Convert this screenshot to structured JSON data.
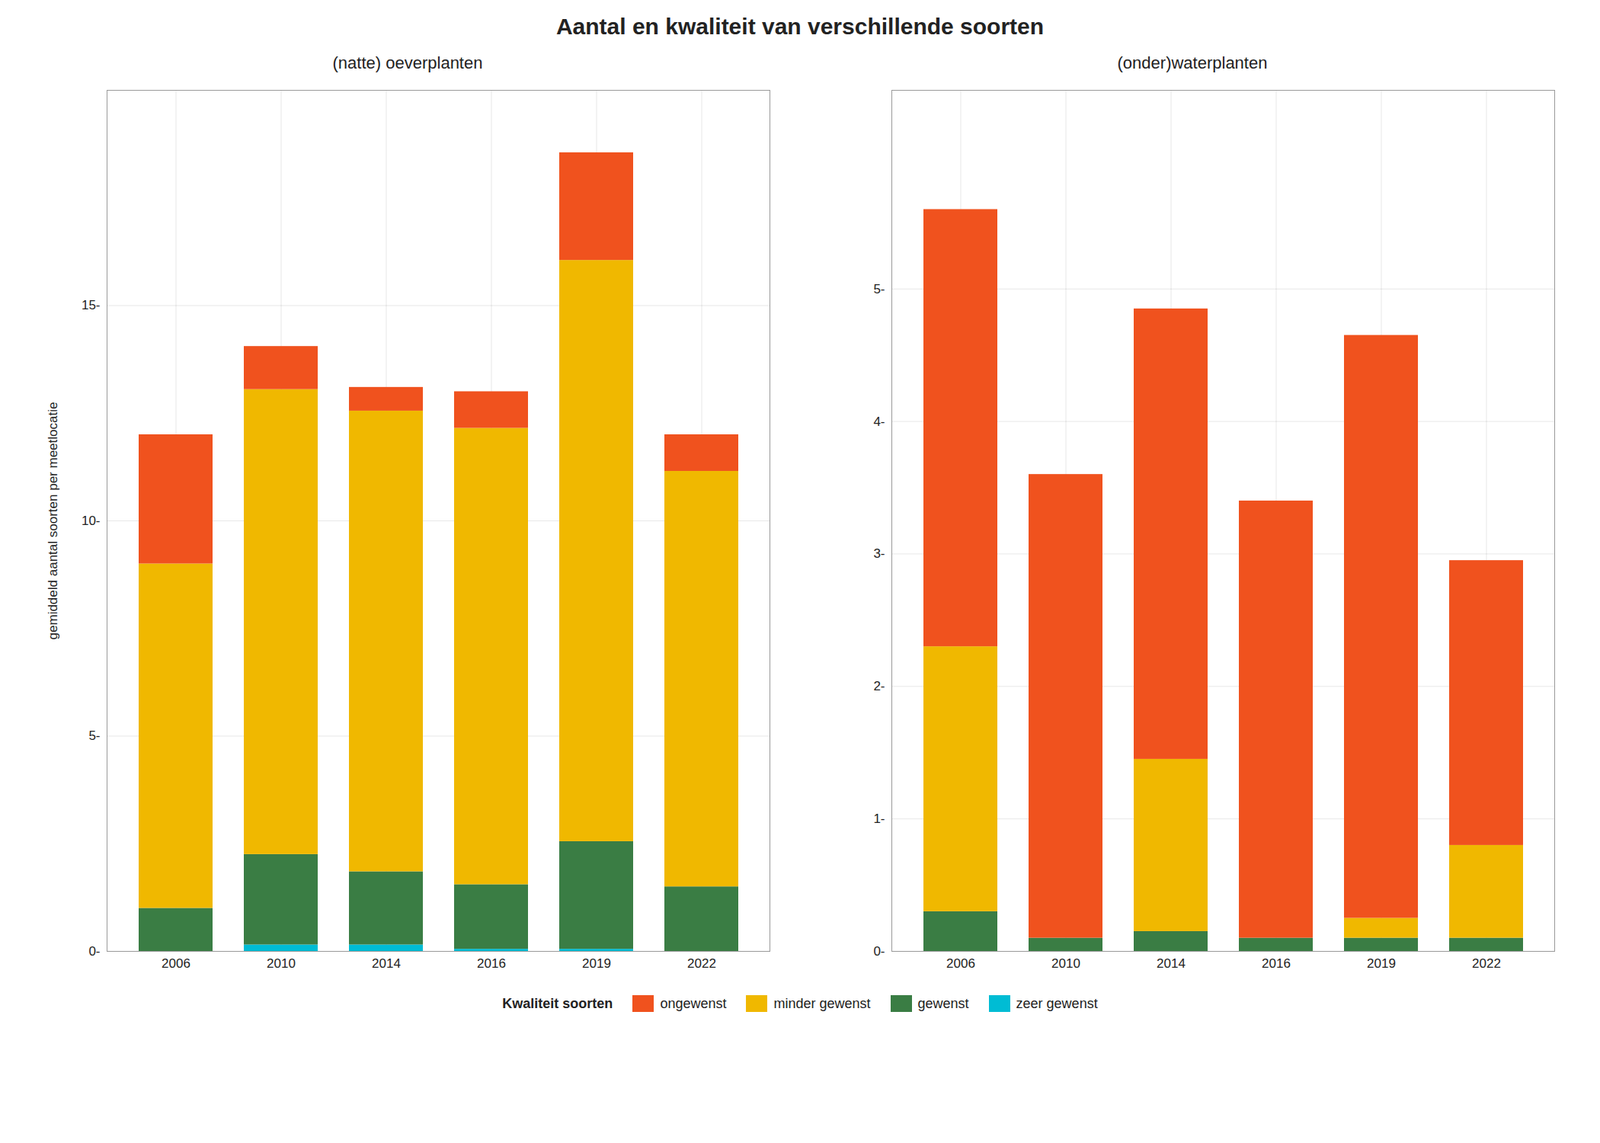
{
  "title": "Aantal en kwaliteit van verschillende soorten",
  "legend_title": "Kwaliteit soorten",
  "legend": "bottom",
  "chart_data": [
    {
      "type": "bar",
      "stacked": true,
      "grid": true,
      "title": "(natte) oeverplanten",
      "ylabel": "gemiddeld aantal soorten per meetlocatie",
      "categories": [
        "2006",
        "2010",
        "2014",
        "2016",
        "2019",
        "2022"
      ],
      "series": [
        {
          "name": "zeer gewenst",
          "color": "#00bcd4",
          "values": [
            0.0,
            0.15,
            0.15,
            0.05,
            0.05,
            0.0
          ]
        },
        {
          "name": "gewenst",
          "color": "#3a7d44",
          "values": [
            1.0,
            2.1,
            1.7,
            1.5,
            2.5,
            1.5
          ]
        },
        {
          "name": "minder gewenst",
          "color": "#f0b800",
          "values": [
            8.0,
            10.8,
            10.7,
            10.6,
            13.5,
            9.65
          ]
        },
        {
          "name": "ongewenst",
          "color": "#f0521e",
          "values": [
            3.0,
            1.0,
            0.55,
            0.85,
            2.5,
            0.85
          ]
        }
      ],
      "ylim": [
        0,
        20
      ],
      "yticks": [
        {
          "value": 0,
          "label": "0-"
        },
        {
          "value": 5,
          "label": "5-"
        },
        {
          "value": 10,
          "label": "10-"
        },
        {
          "value": 15,
          "label": "15-"
        }
      ]
    },
    {
      "type": "bar",
      "stacked": true,
      "grid": true,
      "title": "(onder)waterplanten",
      "categories": [
        "2006",
        "2010",
        "2014",
        "2016",
        "2019",
        "2022"
      ],
      "series": [
        {
          "name": "zeer gewenst",
          "color": "#00bcd4",
          "values": [
            0.0,
            0.0,
            0.0,
            0.0,
            0.0,
            0.0
          ]
        },
        {
          "name": "gewenst",
          "color": "#3a7d44",
          "values": [
            0.3,
            0.1,
            0.15,
            0.1,
            0.1,
            0.1
          ]
        },
        {
          "name": "minder gewenst",
          "color": "#f0b800",
          "values": [
            2.0,
            0.0,
            1.3,
            0.0,
            0.15,
            0.7
          ]
        },
        {
          "name": "ongewenst",
          "color": "#f0521e",
          "values": [
            3.3,
            3.5,
            3.4,
            3.3,
            4.4,
            2.15
          ]
        }
      ],
      "ylim": [
        0,
        6.5
      ],
      "yticks": [
        {
          "value": 0,
          "label": "0-"
        },
        {
          "value": 1,
          "label": "1-"
        },
        {
          "value": 2,
          "label": "2-"
        },
        {
          "value": 3,
          "label": "3-"
        },
        {
          "value": 4,
          "label": "4-"
        },
        {
          "value": 5,
          "label": "5-"
        }
      ]
    }
  ]
}
